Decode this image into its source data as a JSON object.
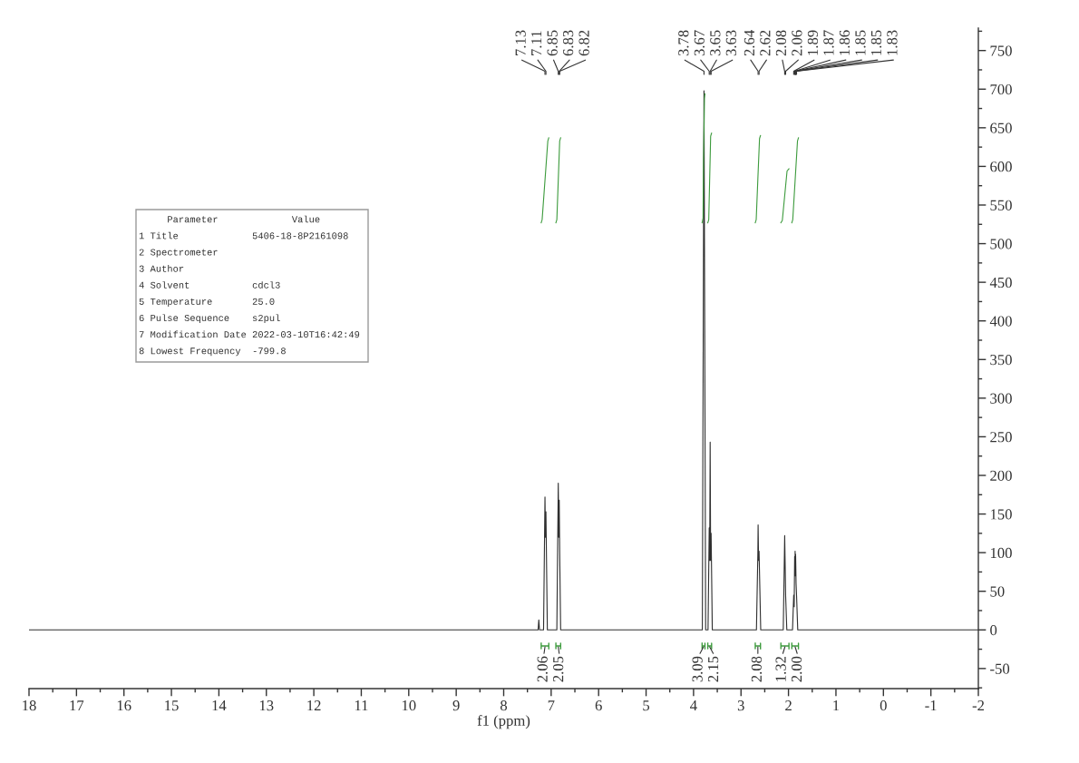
{
  "chart_data": [
    {
      "type": "line",
      "xlabel": "f1 (ppm)",
      "xlim": [
        18,
        -2
      ],
      "xticks": [
        18,
        17,
        16,
        15,
        14,
        13,
        12,
        11,
        10,
        9,
        8,
        7,
        6,
        5,
        4,
        3,
        2,
        1,
        0,
        -1,
        -2
      ],
      "ylim": [
        -76,
        779
      ],
      "yticks": [
        -50,
        0,
        50,
        100,
        150,
        200,
        250,
        300,
        350,
        400,
        450,
        500,
        550,
        600,
        650,
        700,
        750
      ],
      "series": [
        {
          "color": "#2f2f2f",
          "x": [
            18,
            7.35,
            7.275,
            7.26,
            7.245,
            7.16,
            7.13,
            7.12,
            7.11,
            7.08,
            6.88,
            6.85,
            6.84,
            6.83,
            6.82,
            6.8,
            3.815,
            3.78,
            3.745,
            3.695,
            3.67,
            3.66,
            3.65,
            3.64,
            3.63,
            3.605,
            2.675,
            2.645,
            2.64,
            2.63,
            2.62,
            2.585,
            2.11,
            2.08,
            2.06,
            2.035,
            1.915,
            1.89,
            1.88,
            1.87,
            1.865,
            1.86,
            1.855,
            1.85,
            1.84,
            1.83,
            1.805,
            -2
          ],
          "values": [
            0,
            0,
            0,
            13,
            0,
            0,
            172,
            120,
            153,
            0,
            0,
            190,
            120,
            168,
            100,
            0,
            0,
            698,
            0,
            0,
            132,
            90,
            243,
            90,
            125,
            0,
            0,
            100,
            136,
            90,
            102,
            0,
            0,
            122,
            44,
            0,
            0,
            45,
            30,
            95,
            70,
            102,
            70,
            98,
            60,
            45,
            0,
            0
          ]
        },
        {
          "color": "#3d9b3d",
          "x": [
            7.21,
            7.19,
            7.13,
            7.07,
            7.05
          ],
          "values": [
            527,
            531,
            582,
            633,
            637
          ]
        },
        {
          "color": "#3d9b3d",
          "x": [
            6.9,
            6.88,
            6.85,
            6.82,
            6.8
          ],
          "values": [
            527,
            531,
            582,
            633,
            637
          ]
        },
        {
          "color": "#3d9b3d",
          "x": [
            3.82,
            3.8,
            3.79,
            3.77,
            3.76
          ],
          "values": [
            527,
            533,
            610,
            688,
            694
          ]
        },
        {
          "color": "#3d9b3d",
          "x": [
            3.7,
            3.68,
            3.66,
            3.64,
            3.62
          ],
          "values": [
            527,
            531,
            585,
            639,
            643
          ]
        },
        {
          "color": "#3d9b3d",
          "x": [
            2.7,
            2.68,
            2.645,
            2.61,
            2.59
          ],
          "values": [
            527,
            531,
            584,
            636,
            640
          ]
        },
        {
          "color": "#3d9b3d",
          "x": [
            2.16,
            2.13,
            2.08,
            2.03,
            1.99
          ],
          "values": [
            527,
            530,
            562,
            594,
            597
          ]
        },
        {
          "color": "#3d9b3d",
          "x": [
            1.93,
            1.91,
            1.86,
            1.81,
            1.79
          ],
          "values": [
            527,
            531,
            582,
            633,
            637
          ]
        }
      ],
      "annotations": [
        {
          "text": "7.13",
          "x": 7.13
        },
        {
          "text": "7.11",
          "x": 7.11
        },
        {
          "text": "6.85",
          "x": 6.85
        },
        {
          "text": "6.83",
          "x": 6.83
        },
        {
          "text": "6.82",
          "x": 6.82
        },
        {
          "text": "3.78",
          "x": 3.78
        },
        {
          "text": "3.67",
          "x": 3.67
        },
        {
          "text": "3.65",
          "x": 3.65
        },
        {
          "text": "3.63",
          "x": 3.63
        },
        {
          "text": "2.64",
          "x": 2.64
        },
        {
          "text": "2.62",
          "x": 2.62
        },
        {
          "text": "2.08",
          "x": 2.08
        },
        {
          "text": "2.06",
          "x": 2.06
        },
        {
          "text": "1.89",
          "x": 1.89
        },
        {
          "text": "1.87",
          "x": 1.87
        },
        {
          "text": "1.86",
          "x": 1.86
        },
        {
          "text": "1.85",
          "x": 1.85
        },
        {
          "text": "1.85",
          "x": 1.85
        },
        {
          "text": "1.83",
          "x": 1.83
        },
        "2.06",
        "2.05",
        "3.09",
        "2.15",
        "2.08",
        "1.32",
        "2.00"
      ]
    },
    {
      "type": "other",
      "annotations": [
        "Parameter\tValue",
        "1 Title\t5406-18-8P2161098",
        "2 Spectrometer",
        "3 Author",
        "4 Solvent\tcdcl3",
        "5 Temperature\t25.0",
        "6 Pulse Sequence\ts2pul",
        "7 Modification Date\t2022-03-10T16:42:49",
        "8 Lowest Frequency\t-799.8"
      ]
    }
  ]
}
